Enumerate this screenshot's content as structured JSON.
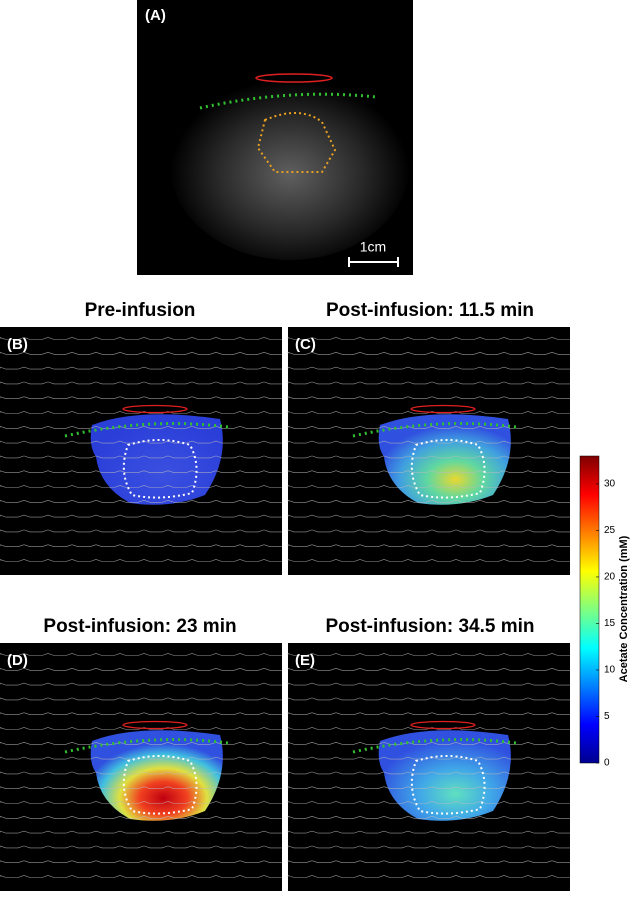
{
  "panel_a": {
    "label": "(A)",
    "scale_bar": "1cm"
  },
  "panels": [
    {
      "label": "(B)",
      "title": "Pre-infusion"
    },
    {
      "label": "(C)",
      "title": "Post-infusion: 11.5 min"
    },
    {
      "label": "(D)",
      "title": "Post-infusion: 23 min"
    },
    {
      "label": "(E)",
      "title": "Post-infusion: 34.5 min"
    }
  ],
  "colorbar": {
    "label": "Acetate Concentration (mM)",
    "lim": [
      0,
      33
    ],
    "ticks": [
      0,
      5,
      10,
      15,
      20,
      25,
      30
    ]
  }
}
